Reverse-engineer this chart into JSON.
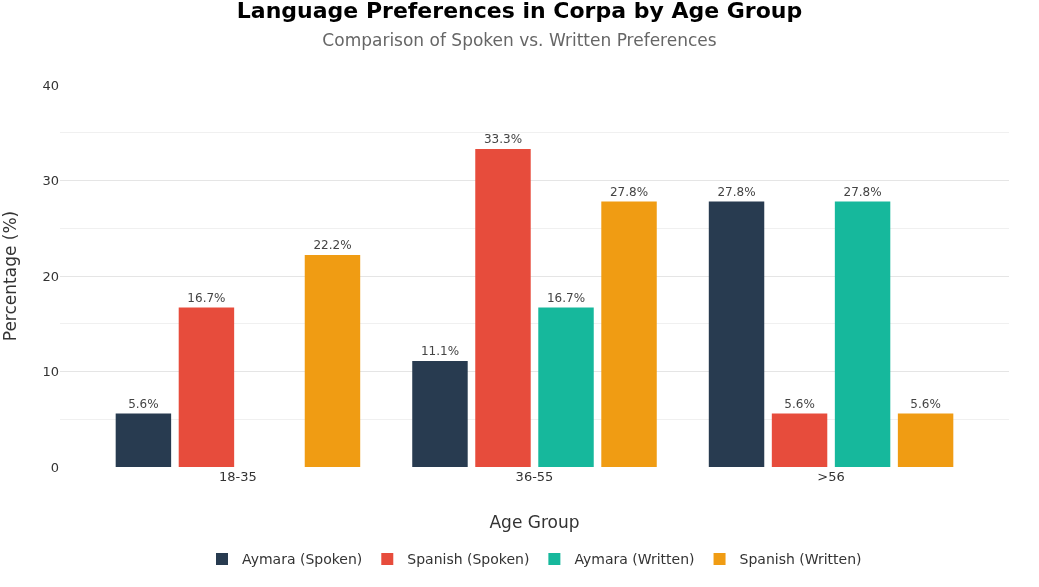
{
  "chart_data": {
    "type": "bar",
    "title": "Language Preferences in Corpa by Age Group",
    "subtitle": "Comparison of Spoken vs. Written Preferences",
    "xlabel": "Age Group",
    "ylabel": "Percentage (%)",
    "categories": [
      "18-35",
      "36-55",
      ">56"
    ],
    "series": [
      {
        "name": "Aymara (Spoken)",
        "color": "#283b50",
        "values": [
          5.6,
          11.1,
          27.8
        ],
        "value_labels": [
          "5.6%",
          "11.1%",
          "27.8%"
        ]
      },
      {
        "name": "Spanish (Spoken)",
        "color": "#e74c3c",
        "values": [
          16.7,
          33.3,
          5.6
        ],
        "value_labels": [
          "16.7%",
          "33.3%",
          "5.6%"
        ]
      },
      {
        "name": "Aymara (Written)",
        "color": "#16b89c",
        "values": [
          null,
          16.7,
          27.8
        ],
        "value_labels": [
          null,
          "16.7%",
          "27.8%"
        ]
      },
      {
        "name": "Spanish (Written)",
        "color": "#f09c13",
        "values": [
          22.2,
          27.8,
          5.6
        ],
        "value_labels": [
          "22.2%",
          "27.8%",
          "5.6%"
        ]
      }
    ],
    "ylim": [
      0,
      40
    ],
    "yticks": [
      0,
      10,
      20,
      30,
      40
    ],
    "grid": "y",
    "legend": "bottom"
  }
}
